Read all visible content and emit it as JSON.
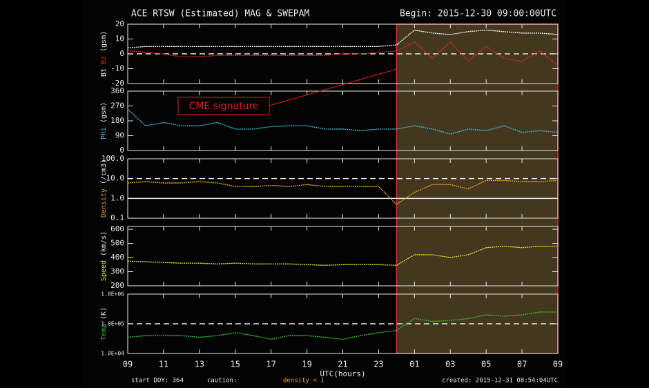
{
  "header": {
    "title": "ACE RTSW (Estimated) MAG & SWEPAM",
    "begin": "Begin: 2015-12-30 09:00:00UTC"
  },
  "annotation": {
    "text": "CME signature",
    "color": "#e02020"
  },
  "highlight": {
    "x_range": [
      24,
      33
    ],
    "fill": "#5a4a2a",
    "stroke": "#e03030"
  },
  "footer": {
    "start_doy": "start DOY: 364",
    "caution": "caution:",
    "density_note": "density < 1",
    "density_note_color": "#e8a020",
    "created": "created: 2015-12-31 08:54:04UTC"
  },
  "chart_data": [
    {
      "type": "line",
      "y_label": "(gsm)",
      "xlim": [
        9,
        33
      ],
      "ylim": [
        -20,
        20
      ],
      "yticks": [
        -20,
        -10,
        0,
        10,
        20
      ],
      "ref_lines": [
        {
          "value": 0,
          "style": "dashed"
        }
      ],
      "x": [
        9,
        10,
        11,
        12,
        13,
        14,
        15,
        16,
        17,
        18,
        19,
        20,
        21,
        22,
        23,
        24,
        25,
        26,
        27,
        28,
        29,
        30,
        31,
        32,
        33
      ],
      "series": [
        {
          "name": "Bt",
          "color": "#f0f0f0",
          "values": [
            4,
            5,
            5,
            5,
            5,
            5,
            5,
            5,
            5,
            5,
            5,
            5,
            5,
            5,
            5,
            6,
            16,
            14,
            13,
            15,
            16,
            15,
            14,
            14,
            13
          ]
        },
        {
          "name": "Bz",
          "color": "#e02828",
          "values": [
            2,
            1,
            0,
            -2,
            -2,
            -1,
            -1,
            -1,
            -1,
            -1,
            -1,
            -1,
            0,
            0,
            1,
            2,
            8,
            -3,
            8,
            -5,
            5,
            -3,
            -5,
            2,
            -8
          ]
        }
      ]
    },
    {
      "type": "line",
      "y_label": "(gsm)",
      "xlim": [
        9,
        33
      ],
      "ylim": [
        0,
        360
      ],
      "yticks": [
        0,
        90,
        180,
        270,
        360
      ],
      "x": [
        9,
        10,
        11,
        12,
        13,
        14,
        15,
        16,
        17,
        18,
        19,
        20,
        21,
        22,
        23,
        24,
        25,
        26,
        27,
        28,
        29,
        30,
        31,
        32,
        33
      ],
      "series": [
        {
          "name": "Phi",
          "color": "#40b8d0",
          "values": [
            250,
            150,
            170,
            150,
            150,
            170,
            130,
            130,
            145,
            150,
            150,
            130,
            130,
            120,
            130,
            130,
            150,
            130,
            100,
            130,
            120,
            150,
            110,
            120,
            110
          ]
        }
      ]
    },
    {
      "type": "line",
      "y_label": "(/cm3)",
      "log": true,
      "xlim": [
        9,
        33
      ],
      "ylim": [
        0.1,
        100
      ],
      "yticks": [
        0.1,
        {
          "value": 1,
          "label": "1.0"
        },
        {
          "value": 10,
          "label": "10.0"
        },
        {
          "value": 100,
          "label": "100.0"
        }
      ],
      "ref_lines": [
        {
          "value": 1,
          "style": "solid"
        },
        {
          "value": 10,
          "style": "dashed"
        }
      ],
      "x": [
        9,
        10,
        11,
        12,
        13,
        14,
        15,
        16,
        17,
        18,
        19,
        20,
        21,
        22,
        23,
        24,
        25,
        26,
        27,
        28,
        29,
        30,
        31,
        32,
        33
      ],
      "series": [
        {
          "name": "Density",
          "color": "#e8a020",
          "values": [
            6,
            7,
            6,
            6,
            7,
            6,
            4,
            4,
            4.5,
            4,
            5,
            4,
            4,
            4,
            4,
            0.5,
            2,
            5,
            5,
            3,
            8,
            8,
            7,
            7,
            8
          ]
        }
      ]
    },
    {
      "type": "line",
      "y_label": "(km/s)",
      "xlim": [
        9,
        33
      ],
      "ylim": [
        200,
        620
      ],
      "yticks": [
        200,
        300,
        400,
        500,
        600
      ],
      "x": [
        9,
        10,
        11,
        12,
        13,
        14,
        15,
        16,
        17,
        18,
        19,
        20,
        21,
        22,
        23,
        24,
        25,
        26,
        27,
        28,
        29,
        30,
        31,
        32,
        33
      ],
      "series": [
        {
          "name": "Speed",
          "color": "#e0e020",
          "values": [
            375,
            370,
            365,
            360,
            360,
            355,
            360,
            355,
            355,
            355,
            350,
            345,
            350,
            350,
            350,
            345,
            420,
            420,
            400,
            420,
            470,
            480,
            470,
            480,
            480
          ]
        }
      ]
    },
    {
      "type": "line",
      "y_label": "(K)",
      "log": true,
      "xlim": [
        9,
        33
      ],
      "ylim": [
        10000,
        1000000
      ],
      "yticks": [
        {
          "value": 10000,
          "label": "1.0E+04"
        },
        {
          "value": 100000,
          "label": "1.0E+05"
        },
        {
          "value": 1000000,
          "label": "1.0E+06"
        }
      ],
      "ref_lines": [
        {
          "value": 100000,
          "style": "dashed"
        }
      ],
      "x_label": "UTC(hours)",
      "xticks": [
        {
          "value": 9,
          "label": "09"
        },
        11,
        13,
        15,
        17,
        19,
        21,
        23,
        {
          "value": 25,
          "label": "01"
        },
        {
          "value": 27,
          "label": "03"
        },
        {
          "value": 29,
          "label": "05"
        },
        {
          "value": 31,
          "label": "07"
        },
        {
          "value": 33,
          "label": "09"
        }
      ],
      "x": [
        9,
        10,
        11,
        12,
        13,
        14,
        15,
        16,
        17,
        18,
        19,
        20,
        21,
        22,
        23,
        24,
        25,
        26,
        27,
        28,
        29,
        30,
        31,
        32,
        33
      ],
      "series": [
        {
          "name": "Temp",
          "color": "#30c030",
          "values": [
            35000,
            40000,
            40000,
            40000,
            35000,
            40000,
            50000,
            40000,
            30000,
            40000,
            40000,
            35000,
            30000,
            40000,
            50000,
            60000,
            150000,
            120000,
            130000,
            150000,
            200000,
            180000,
            200000,
            250000,
            250000
          ]
        }
      ]
    }
  ]
}
